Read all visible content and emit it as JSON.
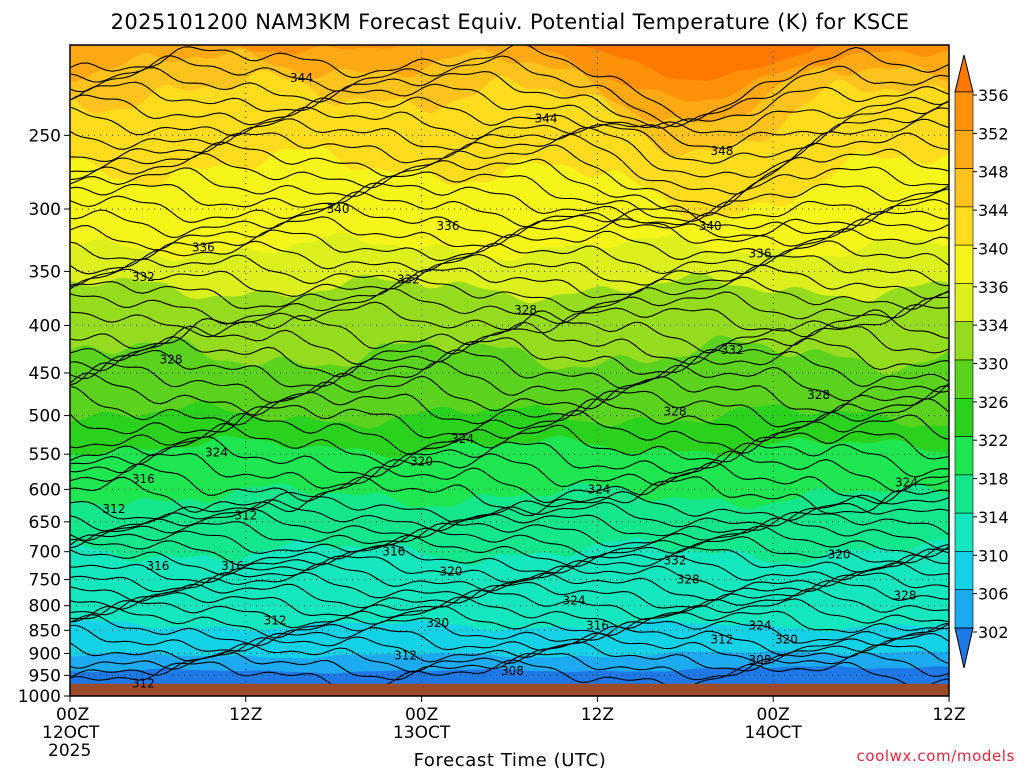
{
  "chart_data": {
    "type": "heatmap",
    "title": "2025101200 NAM3KM Forecast Equiv. Potential Temperature (K) for KSCE",
    "xlabel": "Forecast Time (UTC)",
    "ylabel": "",
    "x_range_hours": [
      0,
      60
    ],
    "y_range_hPa": [
      200,
      1000
    ],
    "y_scale": "log",
    "x_ticks": [
      {
        "hour": 0,
        "label": "00Z",
        "sub1": "12OCT",
        "sub2": "2025"
      },
      {
        "hour": 12,
        "label": "12Z",
        "sub1": "",
        "sub2": ""
      },
      {
        "hour": 24,
        "label": "00Z",
        "sub1": "13OCT",
        "sub2": ""
      },
      {
        "hour": 36,
        "label": "12Z",
        "sub1": "",
        "sub2": ""
      },
      {
        "hour": 48,
        "label": "00Z",
        "sub1": "14OCT",
        "sub2": ""
      },
      {
        "hour": 60,
        "label": "12Z",
        "sub1": "",
        "sub2": ""
      }
    ],
    "y_ticks": [
      250,
      300,
      350,
      400,
      450,
      500,
      550,
      600,
      650,
      700,
      750,
      800,
      850,
      900,
      950,
      1000
    ],
    "surface_pressure_hPa": 970,
    "surface_color": "#9c4a27",
    "colorbar": {
      "levels": [
        302,
        306,
        310,
        314,
        318,
        322,
        326,
        330,
        334,
        336,
        340,
        344,
        348,
        352,
        356
      ],
      "colors": [
        "#1e78e6",
        "#1eaaf0",
        "#14d2e6",
        "#14e6be",
        "#14e68c",
        "#1ee650",
        "#2ad21e",
        "#5ad21e",
        "#96dc1e",
        "#dcf01e",
        "#f5f519",
        "#ffdc1e",
        "#ffc31e",
        "#ffaa14",
        "#ff910a",
        "#ff7800"
      ]
    },
    "series": [
      {
        "name": "upper contours",
        "levels": [
          344,
          340,
          336,
          332,
          328
        ]
      },
      {
        "name": "mid contours",
        "levels": [
          328,
          324,
          320,
          316,
          312
        ]
      },
      {
        "name": "low contours",
        "levels": [
          332,
          328,
          324,
          320,
          316,
          312,
          308
        ]
      }
    ],
    "contour_labels": [
      {
        "text": "344",
        "hour": 15.8,
        "p": 217
      },
      {
        "text": "344",
        "hour": 32.5,
        "p": 240
      },
      {
        "text": "348",
        "hour": 44.5,
        "p": 260
      },
      {
        "text": "340",
        "hour": 18.3,
        "p": 300
      },
      {
        "text": "336",
        "hour": 25.8,
        "p": 313
      },
      {
        "text": "340",
        "hour": 43.7,
        "p": 313
      },
      {
        "text": "336",
        "hour": 9.1,
        "p": 330
      },
      {
        "text": "336",
        "hour": 47.1,
        "p": 335
      },
      {
        "text": "332",
        "hour": 5.0,
        "p": 355
      },
      {
        "text": "332",
        "hour": 23.1,
        "p": 357
      },
      {
        "text": "328",
        "hour": 31.1,
        "p": 385
      },
      {
        "text": "328",
        "hour": 6.9,
        "p": 435
      },
      {
        "text": "332",
        "hour": 45.2,
        "p": 425
      },
      {
        "text": "328",
        "hour": 51.1,
        "p": 475
      },
      {
        "text": "328",
        "hour": 41.3,
        "p": 495
      },
      {
        "text": "324",
        "hour": 26.8,
        "p": 530
      },
      {
        "text": "324",
        "hour": 10.0,
        "p": 548
      },
      {
        "text": "320",
        "hour": 24.0,
        "p": 560
      },
      {
        "text": "316",
        "hour": 5.0,
        "p": 585
      },
      {
        "text": "324",
        "hour": 36.1,
        "p": 600
      },
      {
        "text": "324",
        "hour": 57.1,
        "p": 590
      },
      {
        "text": "312",
        "hour": 3.0,
        "p": 630
      },
      {
        "text": "312",
        "hour": 12.0,
        "p": 640
      },
      {
        "text": "316",
        "hour": 22.1,
        "p": 700
      },
      {
        "text": "320",
        "hour": 52.5,
        "p": 705
      },
      {
        "text": "332",
        "hour": 41.3,
        "p": 715
      },
      {
        "text": "316",
        "hour": 6.0,
        "p": 725
      },
      {
        "text": "316",
        "hour": 11.1,
        "p": 725
      },
      {
        "text": "320",
        "hour": 26.0,
        "p": 735
      },
      {
        "text": "328",
        "hour": 42.2,
        "p": 750
      },
      {
        "text": "328",
        "hour": 57.0,
        "p": 780
      },
      {
        "text": "324",
        "hour": 34.4,
        "p": 790
      },
      {
        "text": "312",
        "hour": 14.0,
        "p": 830
      },
      {
        "text": "320",
        "hour": 25.1,
        "p": 835
      },
      {
        "text": "316",
        "hour": 36.0,
        "p": 840
      },
      {
        "text": "324",
        "hour": 47.1,
        "p": 840
      },
      {
        "text": "312",
        "hour": 44.5,
        "p": 870
      },
      {
        "text": "320",
        "hour": 48.9,
        "p": 870
      },
      {
        "text": "312",
        "hour": 22.9,
        "p": 905
      },
      {
        "text": "308",
        "hour": 30.2,
        "p": 940
      },
      {
        "text": "308",
        "hour": 47.1,
        "p": 915
      },
      {
        "text": "312",
        "hour": 5.0,
        "p": 970
      }
    ]
  },
  "credit": "coolwx.com/models"
}
